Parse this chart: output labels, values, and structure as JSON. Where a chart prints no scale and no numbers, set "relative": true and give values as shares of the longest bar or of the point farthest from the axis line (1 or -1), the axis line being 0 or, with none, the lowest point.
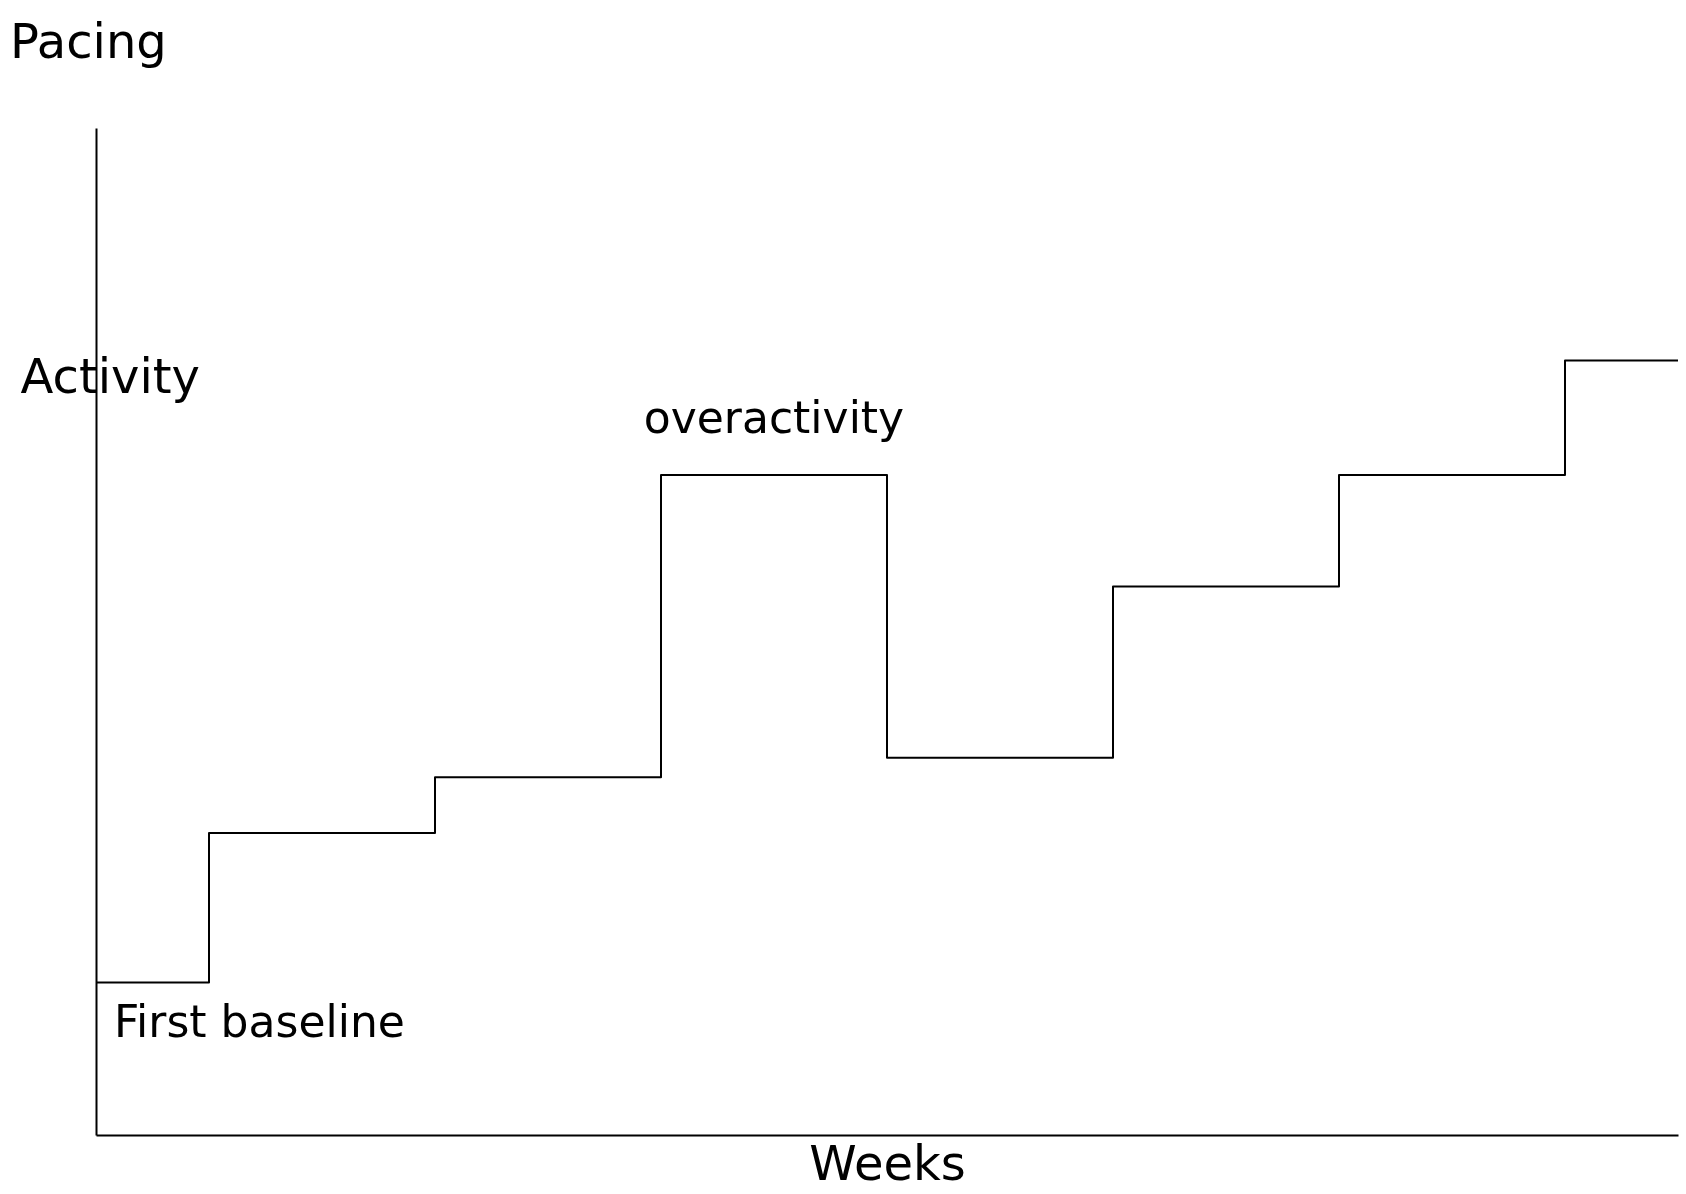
{
  "chart_data": {
    "type": "step",
    "title": "Pacing",
    "xlabel": "Weeks",
    "ylabel": "Activity",
    "relative": true,
    "grid": false,
    "marker": "none",
    "line_style": "solid",
    "categories": [
      null,
      null,
      null,
      null,
      null,
      null,
      null,
      null
    ],
    "series": [
      {
        "color": "#000000",
        "values": [
          0.197,
          0.39,
          0.462,
          0.852,
          0.487,
          0.708,
          0.852,
          1
        ]
      }
    ],
    "annotations": [
      "overactivity",
      "First baseline"
    ]
  }
}
